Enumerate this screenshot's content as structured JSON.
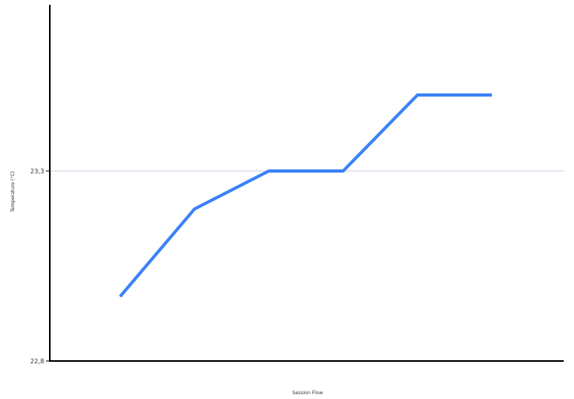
{
  "chart_data": {
    "type": "line",
    "title": "",
    "xlabel": "Session Flow",
    "ylabel": "Temperature (°C)",
    "x": [
      1,
      2,
      3,
      4,
      5,
      6
    ],
    "xlim": [
      0,
      7
    ],
    "ylim": [
      22.8,
      23.8
    ],
    "yticks": [
      22.8,
      23.3
    ],
    "ytick_labels": [
      "22,8",
      "23,3"
    ],
    "series": [
      {
        "name": "",
        "values": [
          22.97,
          23.2,
          23.3,
          23.3,
          23.5,
          23.5
        ]
      }
    ],
    "grid": "horizontal at 23.3",
    "legend": "none",
    "line_color": "#3b82f6"
  }
}
